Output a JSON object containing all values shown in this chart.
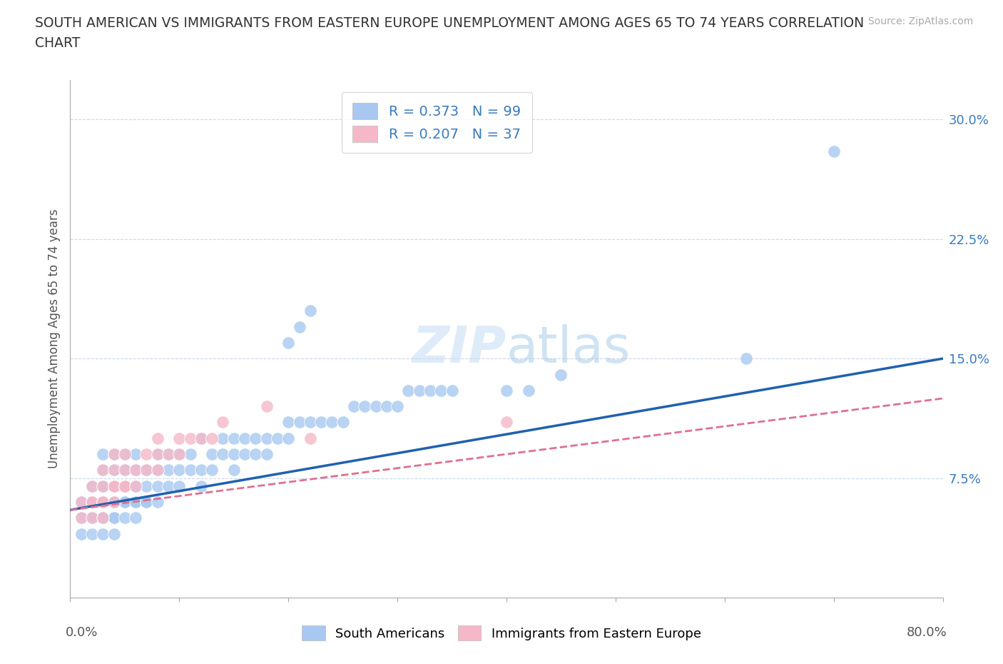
{
  "title_line1": "SOUTH AMERICAN VS IMMIGRANTS FROM EASTERN EUROPE UNEMPLOYMENT AMONG AGES 65 TO 74 YEARS CORRELATION",
  "title_line2": "CHART",
  "source_text": "Source: ZipAtlas.com",
  "ylabel": "Unemployment Among Ages 65 to 74 years",
  "xlim": [
    0.0,
    0.8
  ],
  "ylim": [
    0.0,
    0.325
  ],
  "ytick_positions": [
    0.075,
    0.15,
    0.225,
    0.3
  ],
  "ytick_labels": [
    "7.5%",
    "15.0%",
    "22.5%",
    "30.0%"
  ],
  "grid_color": "#c8d8ec",
  "background_color": "#ffffff",
  "r1": 0.373,
  "n1": 99,
  "r2": 0.207,
  "n2": 37,
  "color_sa": "#a8c8f0",
  "color_ee": "#f5b8c8",
  "line_color_sa": "#2060b0",
  "line_color_ee": "#e07090",
  "sa_x": [
    0.01,
    0.01,
    0.01,
    0.02,
    0.02,
    0.02,
    0.02,
    0.02,
    0.02,
    0.03,
    0.03,
    0.03,
    0.03,
    0.03,
    0.03,
    0.03,
    0.03,
    0.03,
    0.04,
    0.04,
    0.04,
    0.04,
    0.04,
    0.04,
    0.04,
    0.04,
    0.04,
    0.04,
    0.05,
    0.05,
    0.05,
    0.05,
    0.05,
    0.05,
    0.05,
    0.06,
    0.06,
    0.06,
    0.06,
    0.06,
    0.06,
    0.07,
    0.07,
    0.07,
    0.07,
    0.08,
    0.08,
    0.08,
    0.08,
    0.09,
    0.09,
    0.09,
    0.1,
    0.1,
    0.1,
    0.11,
    0.11,
    0.12,
    0.12,
    0.12,
    0.13,
    0.13,
    0.14,
    0.14,
    0.15,
    0.15,
    0.15,
    0.16,
    0.16,
    0.17,
    0.17,
    0.18,
    0.18,
    0.19,
    0.2,
    0.2,
    0.21,
    0.22,
    0.23,
    0.24,
    0.25,
    0.26,
    0.27,
    0.28,
    0.29,
    0.3,
    0.31,
    0.32,
    0.33,
    0.34,
    0.35,
    0.4,
    0.42,
    0.45,
    0.2,
    0.21,
    0.22,
    0.62,
    0.7
  ],
  "sa_y": [
    0.04,
    0.05,
    0.06,
    0.04,
    0.05,
    0.05,
    0.06,
    0.06,
    0.07,
    0.04,
    0.05,
    0.05,
    0.06,
    0.06,
    0.07,
    0.07,
    0.08,
    0.09,
    0.04,
    0.05,
    0.05,
    0.06,
    0.06,
    0.06,
    0.07,
    0.07,
    0.08,
    0.09,
    0.05,
    0.06,
    0.06,
    0.07,
    0.07,
    0.08,
    0.09,
    0.05,
    0.06,
    0.06,
    0.07,
    0.08,
    0.09,
    0.06,
    0.06,
    0.07,
    0.08,
    0.06,
    0.07,
    0.08,
    0.09,
    0.07,
    0.08,
    0.09,
    0.07,
    0.08,
    0.09,
    0.08,
    0.09,
    0.07,
    0.08,
    0.1,
    0.08,
    0.09,
    0.09,
    0.1,
    0.08,
    0.09,
    0.1,
    0.09,
    0.1,
    0.09,
    0.1,
    0.09,
    0.1,
    0.1,
    0.1,
    0.11,
    0.11,
    0.11,
    0.11,
    0.11,
    0.11,
    0.12,
    0.12,
    0.12,
    0.12,
    0.12,
    0.13,
    0.13,
    0.13,
    0.13,
    0.13,
    0.13,
    0.13,
    0.14,
    0.16,
    0.17,
    0.18,
    0.15,
    0.28
  ],
  "ee_x": [
    0.01,
    0.01,
    0.02,
    0.02,
    0.02,
    0.02,
    0.03,
    0.03,
    0.03,
    0.03,
    0.03,
    0.04,
    0.04,
    0.04,
    0.04,
    0.04,
    0.05,
    0.05,
    0.05,
    0.05,
    0.06,
    0.06,
    0.07,
    0.07,
    0.08,
    0.08,
    0.08,
    0.09,
    0.1,
    0.1,
    0.11,
    0.12,
    0.13,
    0.14,
    0.18,
    0.22,
    0.4
  ],
  "ee_y": [
    0.05,
    0.06,
    0.05,
    0.06,
    0.06,
    0.07,
    0.05,
    0.06,
    0.06,
    0.07,
    0.08,
    0.06,
    0.07,
    0.07,
    0.08,
    0.09,
    0.07,
    0.07,
    0.08,
    0.09,
    0.07,
    0.08,
    0.08,
    0.09,
    0.08,
    0.09,
    0.1,
    0.09,
    0.09,
    0.1,
    0.1,
    0.1,
    0.1,
    0.11,
    0.12,
    0.1,
    0.11
  ]
}
